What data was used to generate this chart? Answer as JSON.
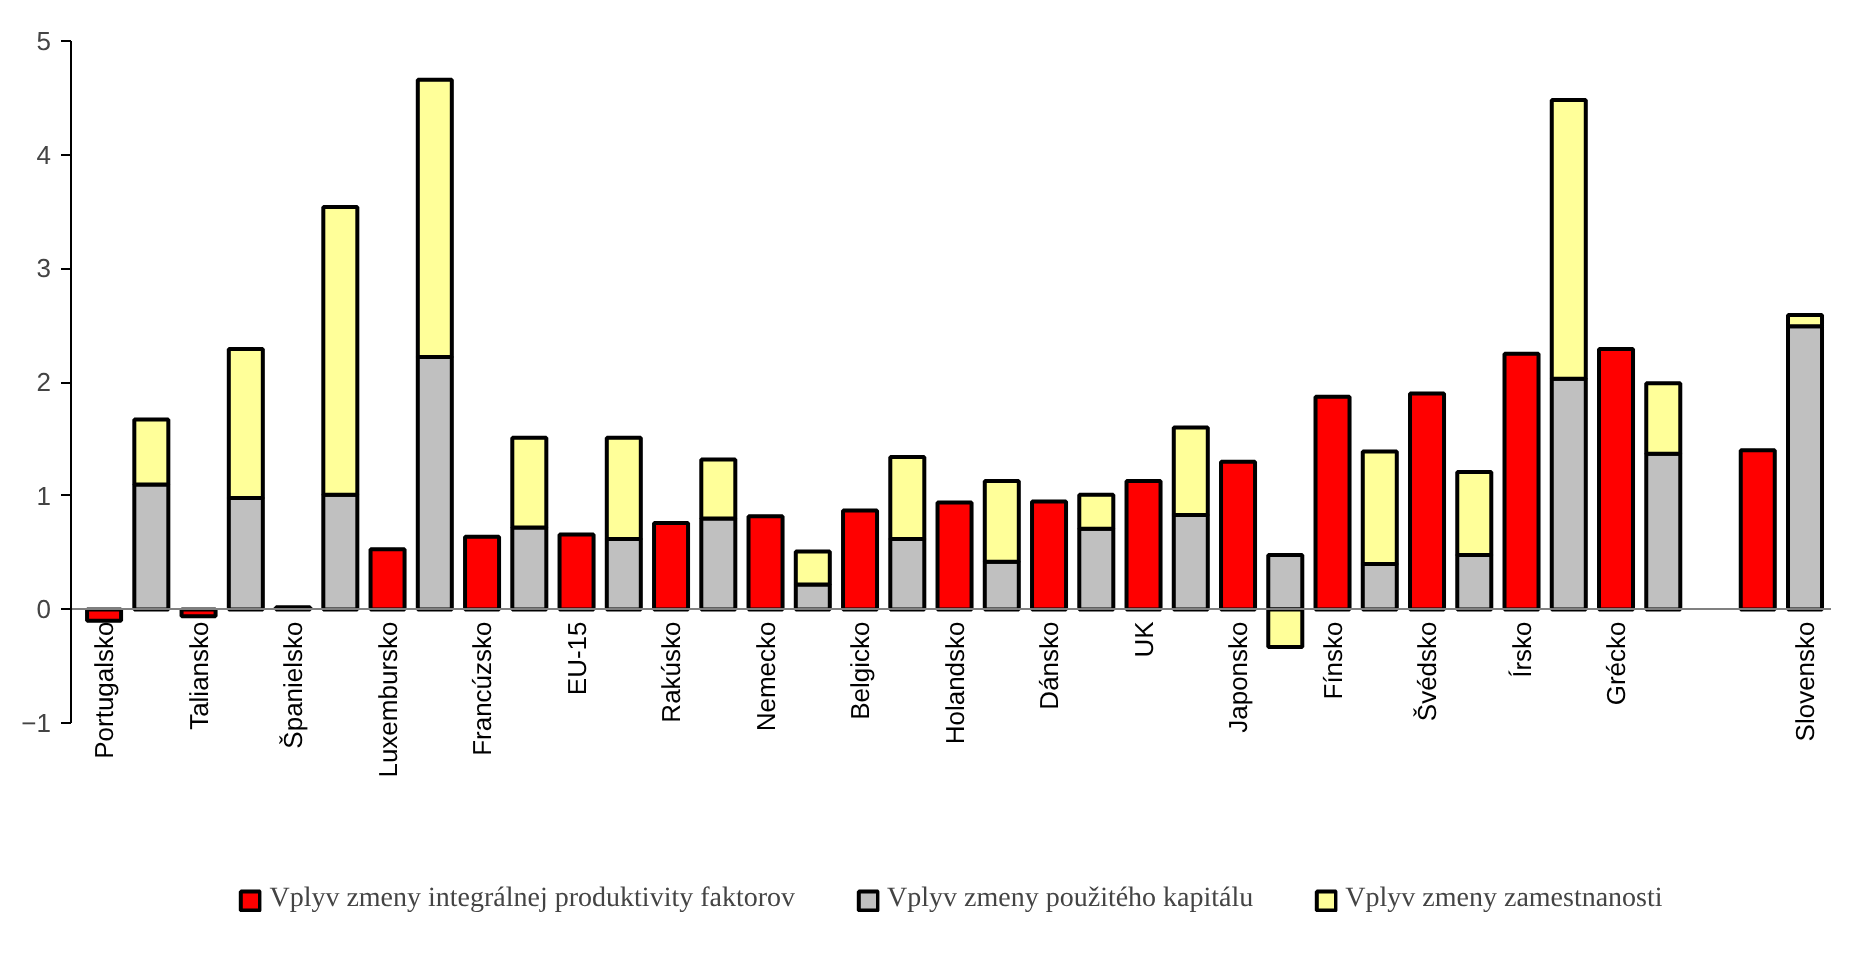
{
  "chart_data": {
    "type": "bar",
    "stacked": true,
    "categories": [
      "Portugalsko",
      null,
      "Taliansko",
      null,
      "Španielsko",
      null,
      "Luxembursko",
      null,
      "Francúzsko",
      null,
      "EU-15",
      null,
      "Rakúsko",
      null,
      "Nemecko",
      null,
      "Belgicko",
      null,
      "Holandsko",
      null,
      "Dánsko",
      null,
      "UK",
      null,
      "Japonsko",
      null,
      "Fínsko",
      null,
      "Švédsko",
      null,
      "Írsko",
      null,
      "Grécko",
      null,
      null,
      null,
      "Slovensko"
    ],
    "series": [
      {
        "name": "Vplyv zmeny integrálnej produktivity faktorov",
        "color": "#ff0000",
        "values": [
          -0.1,
          null,
          -0.06,
          null,
          0.02,
          null,
          0.53,
          null,
          0.64,
          null,
          0.66,
          null,
          0.76,
          null,
          0.82,
          null,
          0.87,
          null,
          0.94,
          null,
          0.95,
          null,
          1.13,
          null,
          1.3,
          null,
          1.87,
          null,
          1.9,
          null,
          2.25,
          null,
          2.29,
          null,
          null,
          1.4,
          null
        ]
      },
      {
        "name": "Vplyv zmeny použitého kapitálu",
        "color": "#c0c0c0",
        "values": [
          null,
          1.1,
          null,
          0.98,
          null,
          1.01,
          null,
          2.22,
          null,
          0.72,
          null,
          0.62,
          null,
          0.8,
          null,
          0.22,
          null,
          0.62,
          null,
          0.42,
          null,
          0.71,
          null,
          0.83,
          null,
          0.48,
          null,
          0.4,
          null,
          0.48,
          null,
          2.03,
          null,
          1.37,
          null,
          null,
          2.49
        ]
      },
      {
        "name": "Vplyv zmeny zamestnanosti",
        "color": "#ffff99",
        "values": [
          null,
          0.57,
          null,
          1.31,
          null,
          2.53,
          null,
          2.44,
          null,
          0.79,
          null,
          0.89,
          null,
          0.52,
          null,
          0.29,
          null,
          0.72,
          null,
          0.71,
          null,
          0.3,
          null,
          0.77,
          null,
          -0.33,
          null,
          0.99,
          null,
          0.73,
          null,
          2.45,
          null,
          0.62,
          null,
          null,
          0.1
        ]
      }
    ],
    "ylim": [
      -1,
      5
    ],
    "yticks": [
      -1,
      0,
      1,
      2,
      3,
      4,
      5
    ],
    "grid": false,
    "legend": "bottom"
  }
}
